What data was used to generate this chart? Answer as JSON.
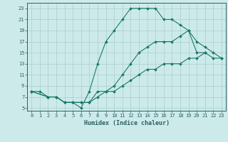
{
  "xlabel": "Humidex (Indice chaleur)",
  "background_color": "#cdeaea",
  "grid_color": "#aacccc",
  "line_color": "#1a7a6a",
  "xlim": [
    -0.5,
    23.5
  ],
  "ylim": [
    4.5,
    24
  ],
  "xticks": [
    0,
    1,
    2,
    3,
    4,
    5,
    6,
    7,
    8,
    9,
    10,
    11,
    12,
    13,
    14,
    15,
    16,
    17,
    18,
    19,
    20,
    21,
    22,
    23
  ],
  "yticks": [
    5,
    7,
    9,
    11,
    13,
    15,
    17,
    19,
    21,
    23
  ],
  "line1_x": [
    0,
    1,
    2,
    3,
    4,
    5,
    6,
    7,
    8,
    9,
    10,
    11,
    12,
    13,
    14,
    15,
    16,
    17,
    18,
    19,
    20,
    21
  ],
  "line1_y": [
    8,
    8,
    7,
    7,
    6,
    6,
    5,
    8,
    13,
    17,
    19,
    21,
    23,
    23,
    23,
    23,
    21,
    21,
    20,
    19,
    15,
    15
  ],
  "line2_x": [
    0,
    2,
    3,
    4,
    5,
    6,
    7,
    8,
    9,
    10,
    11,
    12,
    13,
    14,
    15,
    16,
    17,
    18,
    19,
    20,
    21,
    22,
    23
  ],
  "line2_y": [
    8,
    7,
    7,
    6,
    6,
    6,
    6,
    7,
    8,
    8,
    9,
    10,
    11,
    12,
    12,
    13,
    13,
    13,
    14,
    14,
    15,
    14,
    14
  ],
  "line3_x": [
    0,
    2,
    3,
    4,
    5,
    6,
    7,
    8,
    9,
    10,
    11,
    12,
    13,
    14,
    15,
    16,
    17,
    18,
    19,
    20,
    21,
    22,
    23
  ],
  "line3_y": [
    8,
    7,
    7,
    6,
    6,
    6,
    6,
    8,
    8,
    9,
    11,
    13,
    15,
    16,
    17,
    17,
    17,
    18,
    19,
    17,
    16,
    15,
    14
  ]
}
